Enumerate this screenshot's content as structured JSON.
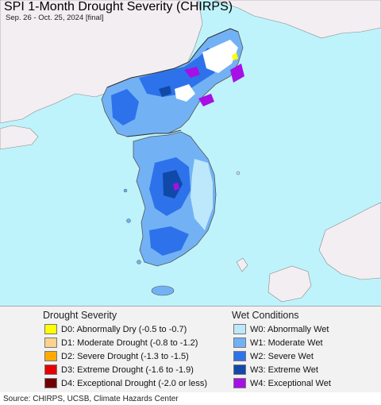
{
  "title": "SPI 1-Month Drought Severity (CHIRPS)",
  "subtitle": "Sep. 26 - Oct. 25, 2024 [final]",
  "legend": {
    "drought_title": "Drought Severity",
    "wet_title": "Wet Conditions",
    "drought_items": [
      {
        "label": "D0: Abnormally Dry (-0.5 to -0.7)",
        "color": "#ffff00"
      },
      {
        "label": "D1: Moderate Drought (-0.8 to -1.2)",
        "color": "#fcd38c"
      },
      {
        "label": "D2: Severe Drought (-1.3 to -1.5)",
        "color": "#ffaa00"
      },
      {
        "label": "D3: Extreme Drought (-1.6 to -1.9)",
        "color": "#e60000"
      },
      {
        "label": "D4: Exceptional Drought (-2.0 or less)",
        "color": "#730000"
      }
    ],
    "wet_items": [
      {
        "label": "W0: Abnormally Wet",
        "color": "#bde8fb"
      },
      {
        "label": "W1: Moderate Wet",
        "color": "#72b2f4"
      },
      {
        "label": "W2: Severe Wet",
        "color": "#2d72ea"
      },
      {
        "label": "W3: Extreme Wet",
        "color": "#1049a8"
      },
      {
        "label": "W4: Exceptional Wet",
        "color": "#a610e6"
      }
    ]
  },
  "footer": "Source: CHIRPS, UCSB, Climate Hazards Center",
  "colors": {
    "ocean": "#bff3fb",
    "land_outside": "#f2eef2",
    "border": "#555555"
  }
}
